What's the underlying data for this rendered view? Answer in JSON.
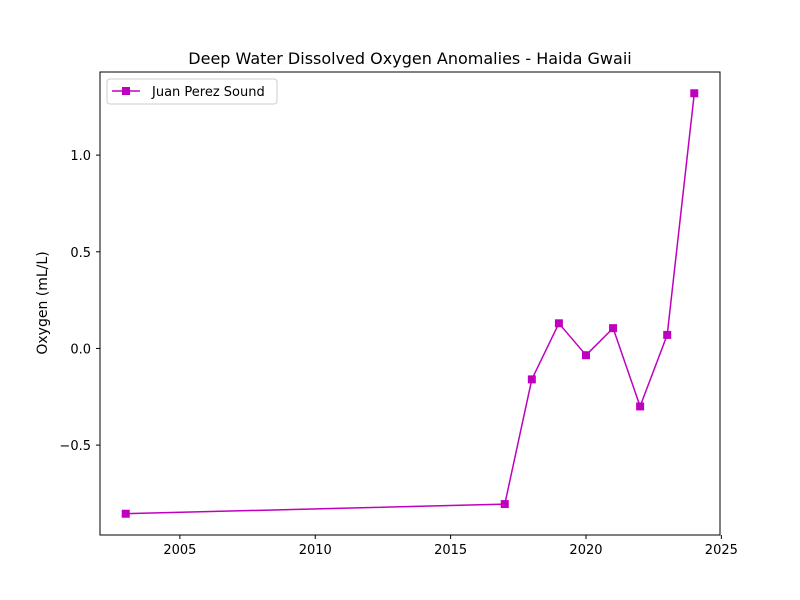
{
  "chart_data": {
    "type": "line",
    "title": "Deep Water Dissolved Oxygen Anomalies - Haida Gwaii",
    "xlabel": "",
    "ylabel": "Oxygen (mL/L)",
    "xlim": [
      2002.05,
      2024.95
    ],
    "ylim": [
      -0.965,
      1.43
    ],
    "xticks": [
      2005,
      2010,
      2015,
      2020,
      2025
    ],
    "yticks": [
      -0.5,
      0.0,
      0.5,
      1.0
    ],
    "ytick_labels": [
      "−0.5",
      "0.0",
      "0.5",
      "1.0"
    ],
    "grid": false,
    "legend_position": "upper-left",
    "series": [
      {
        "name": "Juan Perez Sound",
        "color": "#bf00bf",
        "marker": "square",
        "x": [
          2003,
          2017,
          2018,
          2019,
          2020,
          2021,
          2022,
          2023,
          2024
        ],
        "y": [
          -0.855,
          -0.805,
          -0.16,
          0.13,
          -0.035,
          0.105,
          -0.3,
          0.07,
          1.32
        ]
      }
    ]
  }
}
